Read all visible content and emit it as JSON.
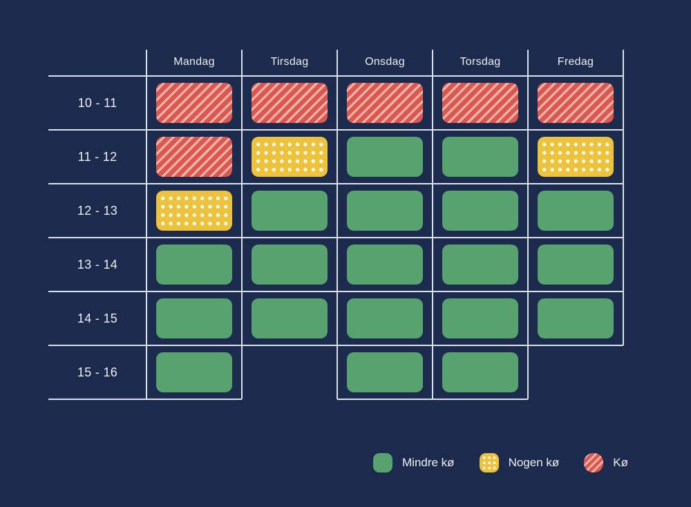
{
  "table": {
    "day_headers": [
      "Mandag",
      "Tirsdag",
      "Onsdag",
      "Torsdag",
      "Fredag"
    ],
    "time_labels": [
      "10 - 11",
      "11 - 12",
      "12 - 13",
      "13 - 14",
      "14 - 15",
      "15 - 16"
    ],
    "cells": [
      [
        "ko",
        "ko",
        "ko",
        "ko",
        "ko"
      ],
      [
        "ko",
        "nogen",
        "mindre",
        "mindre",
        "nogen"
      ],
      [
        "nogen",
        "mindre",
        "mindre",
        "mindre",
        "mindre"
      ],
      [
        "mindre",
        "mindre",
        "mindre",
        "mindre",
        "mindre"
      ],
      [
        "mindre",
        "mindre",
        "mindre",
        "mindre",
        "mindre"
      ],
      [
        "mindre",
        null,
        "mindre",
        "mindre",
        null
      ]
    ]
  },
  "legend": {
    "items": [
      {
        "id": "mindre",
        "label": "Mindre kø"
      },
      {
        "id": "nogen",
        "label": "Nogen kø"
      },
      {
        "id": "ko",
        "label": "Kø"
      }
    ]
  },
  "colors": {
    "background": "#1C2A4E",
    "mindre": "#57A26F",
    "nogen": "#EDC33E",
    "ko": "#DC5750",
    "ko_stripe": "#EFB7AC",
    "dot": "#FFFFFF",
    "grid_line": "#DCE0E8",
    "text": "#EDEFF4"
  },
  "chart_data": {
    "type": "heatmap",
    "title": "",
    "x_categories": [
      "Mandag",
      "Tirsdag",
      "Onsdag",
      "Torsdag",
      "Fredag"
    ],
    "y_categories": [
      "10 - 11",
      "11 - 12",
      "12 - 13",
      "13 - 14",
      "14 - 15",
      "15 - 16"
    ],
    "values": [
      [
        "Kø",
        "Kø",
        "Kø",
        "Kø",
        "Kø"
      ],
      [
        "Kø",
        "Nogen kø",
        "Mindre kø",
        "Mindre kø",
        "Nogen kø"
      ],
      [
        "Nogen kø",
        "Mindre kø",
        "Mindre kø",
        "Mindre kø",
        "Mindre kø"
      ],
      [
        "Mindre kø",
        "Mindre kø",
        "Mindre kø",
        "Mindre kø",
        "Mindre kø"
      ],
      [
        "Mindre kø",
        "Mindre kø",
        "Mindre kø",
        "Mindre kø",
        "Mindre kø"
      ],
      [
        "Mindre kø",
        null,
        "Mindre kø",
        "Mindre kø",
        null
      ]
    ],
    "legend": [
      "Mindre kø",
      "Nogen kø",
      "Kø"
    ],
    "legend_position": "bottom",
    "grid": true
  }
}
